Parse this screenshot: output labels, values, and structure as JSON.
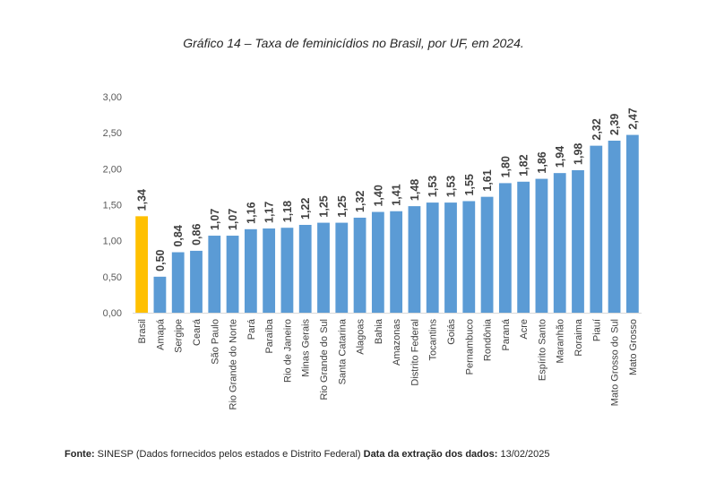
{
  "chart_data": {
    "type": "bar",
    "title": "Gráfico 14 – Taxa de feminicídios no Brasil, por UF, em 2024.",
    "xlabel": "",
    "ylabel": "",
    "ylim": [
      0,
      3
    ],
    "y_ticks": [
      "0,00",
      "0,50",
      "1,00",
      "1,50",
      "2,00",
      "2,50",
      "3,00"
    ],
    "grid": false,
    "legend": "none",
    "categories": [
      "Brasil",
      "Amapá",
      "Sergipe",
      "Ceará",
      "São Paulo",
      "Rio Grande do Norte",
      "Pará",
      "Paraíba",
      "Rio de Janeiro",
      "Minas Gerais",
      "Rio Grande do Sul",
      "Santa Catarina",
      "Alagoas",
      "Bahia",
      "Amazonas",
      "Distrito Federal",
      "Tocantins",
      "Goiás",
      "Pernambuco",
      "Rondônia",
      "Paraná",
      "Acre",
      "Espírito Santo",
      "Maranhão",
      "Roraima",
      "Piauí",
      "Mato Grosso do Sul",
      "Mato Grosso"
    ],
    "values": [
      1.34,
      0.5,
      0.84,
      0.86,
      1.07,
      1.07,
      1.16,
      1.17,
      1.18,
      1.22,
      1.25,
      1.25,
      1.32,
      1.4,
      1.41,
      1.48,
      1.53,
      1.53,
      1.55,
      1.61,
      1.8,
      1.82,
      1.86,
      1.94,
      1.98,
      2.32,
      2.39,
      2.47
    ],
    "value_labels": [
      "1,34",
      "0,50",
      "0,84",
      "0,86",
      "1,07",
      "1,07",
      "1,16",
      "1,17",
      "1,18",
      "1,22",
      "1,25",
      "1,25",
      "1,32",
      "1,40",
      "1,41",
      "1,48",
      "1,53",
      "1,53",
      "1,55",
      "1,61",
      "1,80",
      "1,82",
      "1,86",
      "1,94",
      "1,98",
      "2,32",
      "2,39",
      "2,47"
    ],
    "colors": {
      "default": "#5B9BD5",
      "highlight": "#FFC000",
      "highlight_category": "Brasil"
    }
  },
  "footer": {
    "source_label": "Fonte:",
    "source_text": "SINESP (Dados fornecidos pelos estados e Distrito Federal)",
    "date_label": "Data da extração dos dados:",
    "date_text": "13/02/2025"
  }
}
